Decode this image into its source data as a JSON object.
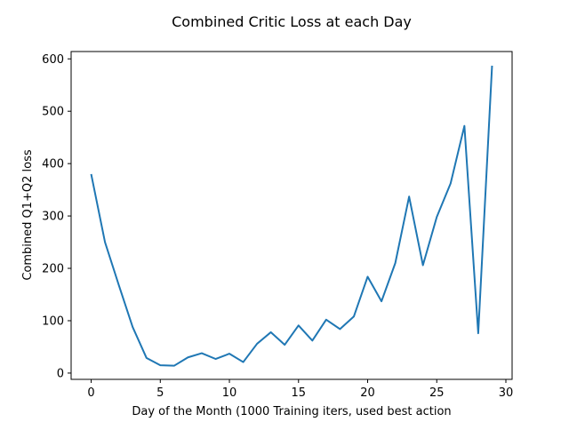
{
  "chart_data": {
    "type": "line",
    "title": "Combined Critic Loss at each Day",
    "xlabel": "Day of the Month (1000 Training iters, used best action",
    "ylabel": "Combined Q1+Q2 loss",
    "xlim": [
      -1.45,
      30.45
    ],
    "ylim": [
      -12,
      614
    ],
    "xticks": [
      0,
      5,
      10,
      15,
      20,
      25,
      30
    ],
    "xtick_labels": [
      "0",
      "5",
      "10",
      "15",
      "20",
      "25",
      "30"
    ],
    "yticks": [
      0,
      100,
      200,
      300,
      400,
      500,
      600
    ],
    "ytick_labels": [
      "0",
      "100",
      "200",
      "300",
      "400",
      "500",
      "600"
    ],
    "grid": false,
    "legend": "none",
    "series": [
      {
        "color": "#1f77b4",
        "x": [
          0,
          1,
          2,
          3,
          4,
          5,
          6,
          7,
          8,
          9,
          10,
          11,
          12,
          13,
          14,
          15,
          16,
          17,
          18,
          19,
          20,
          21,
          22,
          23,
          24,
          25,
          26,
          27,
          28,
          29
        ],
        "y": [
          380,
          250,
          168,
          88,
          29,
          15,
          14,
          30,
          38,
          27,
          37,
          21,
          56,
          78,
          54,
          91,
          62,
          102,
          84,
          108,
          184,
          137,
          210,
          337,
          206,
          298,
          362,
          472,
          76,
          587
        ]
      }
    ]
  }
}
